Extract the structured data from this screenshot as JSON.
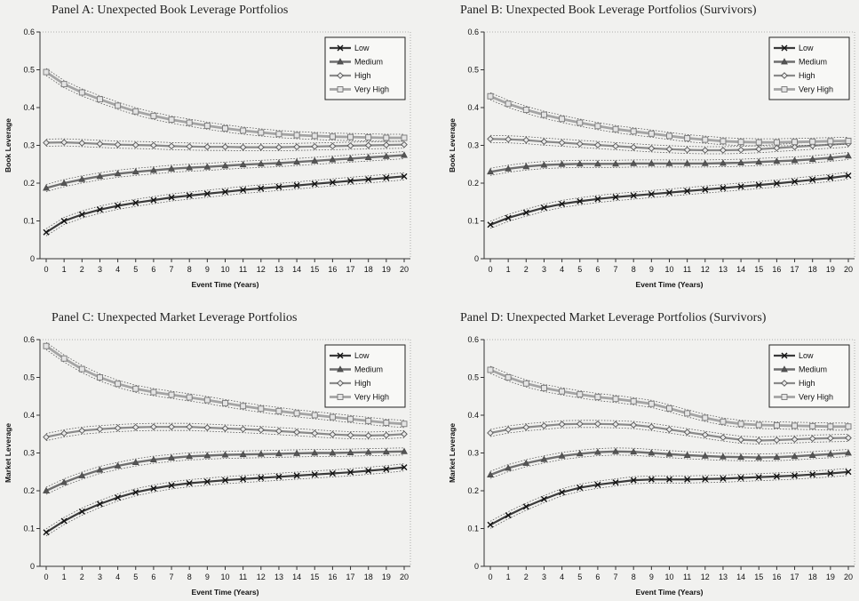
{
  "chart_data": [
    {
      "type": "line",
      "title": "Panel A: Unexpected Book Leverage Portfolios",
      "xlabel": "Event Time (Years)",
      "ylabel": "Book Leverage",
      "ylim": [
        0,
        0.6
      ],
      "yticks": [
        "0",
        "0.1",
        "0.2",
        "0.3",
        "0.4",
        "0.5",
        "0.6"
      ],
      "x": [
        0,
        1,
        2,
        3,
        4,
        5,
        6,
        7,
        8,
        9,
        10,
        11,
        12,
        13,
        14,
        15,
        16,
        17,
        18,
        19,
        20
      ],
      "legend_position": "top-right",
      "grid": false,
      "series": [
        {
          "name": "Low",
          "marker": "x",
          "values": [
            0.07,
            0.1,
            0.117,
            0.13,
            0.14,
            0.148,
            0.155,
            0.162,
            0.167,
            0.172,
            0.177,
            0.182,
            0.186,
            0.19,
            0.194,
            0.198,
            0.202,
            0.206,
            0.21,
            0.214,
            0.218
          ]
        },
        {
          "name": "Medium",
          "marker": "triangle",
          "values": [
            0.187,
            0.2,
            0.21,
            0.218,
            0.225,
            0.23,
            0.234,
            0.238,
            0.241,
            0.243,
            0.246,
            0.249,
            0.251,
            0.253,
            0.256,
            0.259,
            0.262,
            0.265,
            0.268,
            0.271,
            0.274
          ]
        },
        {
          "name": "High",
          "marker": "diamond",
          "values": [
            0.307,
            0.308,
            0.306,
            0.304,
            0.302,
            0.301,
            0.3,
            0.298,
            0.297,
            0.296,
            0.296,
            0.295,
            0.295,
            0.295,
            0.296,
            0.297,
            0.298,
            0.299,
            0.3,
            0.301,
            0.302
          ]
        },
        {
          "name": "Very High",
          "marker": "square",
          "values": [
            0.494,
            0.462,
            0.44,
            0.422,
            0.405,
            0.39,
            0.378,
            0.368,
            0.36,
            0.352,
            0.345,
            0.339,
            0.334,
            0.33,
            0.327,
            0.325,
            0.323,
            0.322,
            0.321,
            0.32,
            0.32
          ]
        }
      ]
    },
    {
      "type": "line",
      "title": "Panel B: Unexpected Book Leverage Portfolios (Survivors)",
      "xlabel": "Event Time (Years)",
      "ylabel": "Book Leverage",
      "ylim": [
        0,
        0.6
      ],
      "yticks": [
        "0",
        "0.1",
        "0.2",
        "0.3",
        "0.4",
        "0.5",
        "0.6"
      ],
      "x": [
        0,
        1,
        2,
        3,
        4,
        5,
        6,
        7,
        8,
        9,
        10,
        11,
        12,
        13,
        14,
        15,
        16,
        17,
        18,
        19,
        20
      ],
      "legend_position": "top-right",
      "grid": false,
      "series": [
        {
          "name": "Low",
          "marker": "x",
          "values": [
            0.09,
            0.108,
            0.122,
            0.135,
            0.145,
            0.152,
            0.158,
            0.163,
            0.167,
            0.171,
            0.175,
            0.179,
            0.183,
            0.187,
            0.191,
            0.195,
            0.199,
            0.204,
            0.209,
            0.214,
            0.22
          ]
        },
        {
          "name": "Medium",
          "marker": "triangle",
          "values": [
            0.23,
            0.238,
            0.244,
            0.248,
            0.25,
            0.251,
            0.251,
            0.251,
            0.252,
            0.252,
            0.252,
            0.252,
            0.252,
            0.253,
            0.254,
            0.256,
            0.258,
            0.26,
            0.263,
            0.267,
            0.272
          ]
        },
        {
          "name": "High",
          "marker": "diamond",
          "values": [
            0.317,
            0.316,
            0.314,
            0.31,
            0.307,
            0.304,
            0.301,
            0.298,
            0.295,
            0.292,
            0.29,
            0.288,
            0.287,
            0.287,
            0.288,
            0.29,
            0.293,
            0.296,
            0.299,
            0.302,
            0.305
          ]
        },
        {
          "name": "Very High",
          "marker": "square",
          "values": [
            0.43,
            0.41,
            0.394,
            0.381,
            0.37,
            0.36,
            0.351,
            0.343,
            0.337,
            0.331,
            0.325,
            0.319,
            0.315,
            0.311,
            0.309,
            0.308,
            0.308,
            0.309,
            0.31,
            0.311,
            0.312
          ]
        }
      ]
    },
    {
      "type": "line",
      "title": "Panel C: Unexpected Market Leverage Portfolios",
      "xlabel": "Event Time (Years)",
      "ylabel": "Market Leverage",
      "ylim": [
        0,
        0.6
      ],
      "yticks": [
        "0",
        "0.1",
        "0.2",
        "0.3",
        "0.4",
        "0.5",
        "0.6"
      ],
      "x": [
        0,
        1,
        2,
        3,
        4,
        5,
        6,
        7,
        8,
        9,
        10,
        11,
        12,
        13,
        14,
        15,
        16,
        17,
        18,
        19,
        20
      ],
      "legend_position": "top-right",
      "grid": false,
      "series": [
        {
          "name": "Low",
          "marker": "x",
          "values": [
            0.09,
            0.12,
            0.145,
            0.165,
            0.182,
            0.196,
            0.206,
            0.214,
            0.22,
            0.224,
            0.228,
            0.231,
            0.234,
            0.237,
            0.24,
            0.243,
            0.246,
            0.249,
            0.253,
            0.257,
            0.262
          ]
        },
        {
          "name": "Medium",
          "marker": "triangle",
          "values": [
            0.2,
            0.222,
            0.24,
            0.255,
            0.266,
            0.275,
            0.282,
            0.287,
            0.291,
            0.293,
            0.295,
            0.296,
            0.297,
            0.298,
            0.299,
            0.3,
            0.3,
            0.301,
            0.302,
            0.303,
            0.304
          ]
        },
        {
          "name": "High",
          "marker": "diamond",
          "values": [
            0.342,
            0.352,
            0.359,
            0.363,
            0.366,
            0.368,
            0.369,
            0.369,
            0.369,
            0.367,
            0.365,
            0.363,
            0.361,
            0.358,
            0.355,
            0.352,
            0.349,
            0.347,
            0.346,
            0.347,
            0.35
          ]
        },
        {
          "name": "Very High",
          "marker": "square",
          "values": [
            0.583,
            0.55,
            0.522,
            0.5,
            0.483,
            0.47,
            0.461,
            0.454,
            0.447,
            0.44,
            0.432,
            0.424,
            0.417,
            0.411,
            0.405,
            0.4,
            0.395,
            0.39,
            0.385,
            0.38,
            0.377
          ]
        }
      ]
    },
    {
      "type": "line",
      "title": "Panel D: Unexpected Market Leverage Portfolios (Survivors)",
      "xlabel": "Event Time (Years)",
      "ylabel": "Market Leverage",
      "ylim": [
        0,
        0.6
      ],
      "yticks": [
        "0",
        "0.1",
        "0.2",
        "0.3",
        "0.4",
        "0.5",
        "0.6"
      ],
      "x": [
        0,
        1,
        2,
        3,
        4,
        5,
        6,
        7,
        8,
        9,
        10,
        11,
        12,
        13,
        14,
        15,
        16,
        17,
        18,
        19,
        20
      ],
      "legend_position": "top-right",
      "grid": false,
      "series": [
        {
          "name": "Low",
          "marker": "x",
          "values": [
            0.11,
            0.135,
            0.158,
            0.178,
            0.196,
            0.208,
            0.216,
            0.222,
            0.228,
            0.23,
            0.23,
            0.23,
            0.231,
            0.232,
            0.234,
            0.236,
            0.238,
            0.24,
            0.243,
            0.246,
            0.25
          ]
        },
        {
          "name": "Medium",
          "marker": "triangle",
          "values": [
            0.242,
            0.26,
            0.273,
            0.283,
            0.292,
            0.298,
            0.302,
            0.304,
            0.303,
            0.3,
            0.297,
            0.294,
            0.292,
            0.29,
            0.289,
            0.288,
            0.289,
            0.291,
            0.294,
            0.297,
            0.3
          ]
        },
        {
          "name": "High",
          "marker": "diamond",
          "values": [
            0.353,
            0.362,
            0.368,
            0.372,
            0.376,
            0.377,
            0.377,
            0.376,
            0.374,
            0.369,
            0.362,
            0.355,
            0.348,
            0.341,
            0.335,
            0.333,
            0.334,
            0.336,
            0.338,
            0.339,
            0.34
          ]
        },
        {
          "name": "Very High",
          "marker": "square",
          "values": [
            0.52,
            0.5,
            0.484,
            0.472,
            0.463,
            0.455,
            0.448,
            0.443,
            0.437,
            0.43,
            0.418,
            0.405,
            0.393,
            0.383,
            0.377,
            0.374,
            0.373,
            0.372,
            0.371,
            0.37,
            0.37
          ]
        }
      ]
    }
  ]
}
